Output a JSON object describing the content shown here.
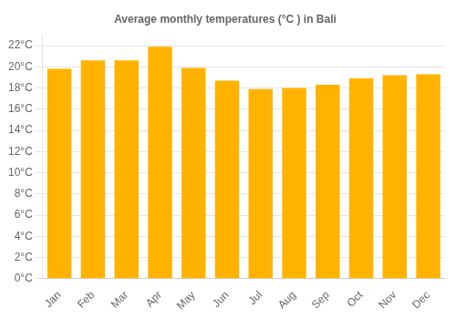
{
  "chart_data": {
    "type": "bar",
    "title": "Average monthly temperatures (°C ) in Bali",
    "categories": [
      "Jan",
      "Feb",
      "Mar",
      "Apr",
      "May",
      "Jun",
      "Jul",
      "Aug",
      "Sep",
      "Oct",
      "Nov",
      "Dec"
    ],
    "values": [
      19.8,
      20.6,
      20.6,
      21.9,
      19.9,
      18.7,
      17.9,
      18.0,
      18.3,
      18.9,
      19.2,
      19.3
    ],
    "color": "#FFB300",
    "ylim": [
      0,
      23
    ],
    "yticks": [
      {
        "value": 0,
        "label": "0°C"
      },
      {
        "value": 2,
        "label": "2°C"
      },
      {
        "value": 4,
        "label": "4°C"
      },
      {
        "value": 6,
        "label": "6°C"
      },
      {
        "value": 8,
        "label": "8°C"
      },
      {
        "value": 10,
        "label": "10°C"
      },
      {
        "value": 12,
        "label": "12°C"
      },
      {
        "value": 14,
        "label": "14°C"
      },
      {
        "value": 16,
        "label": "16°C"
      },
      {
        "value": 18,
        "label": "18°C"
      },
      {
        "value": 20,
        "label": "20°C"
      },
      {
        "value": 22,
        "label": "22°C"
      }
    ],
    "grid": true
  }
}
